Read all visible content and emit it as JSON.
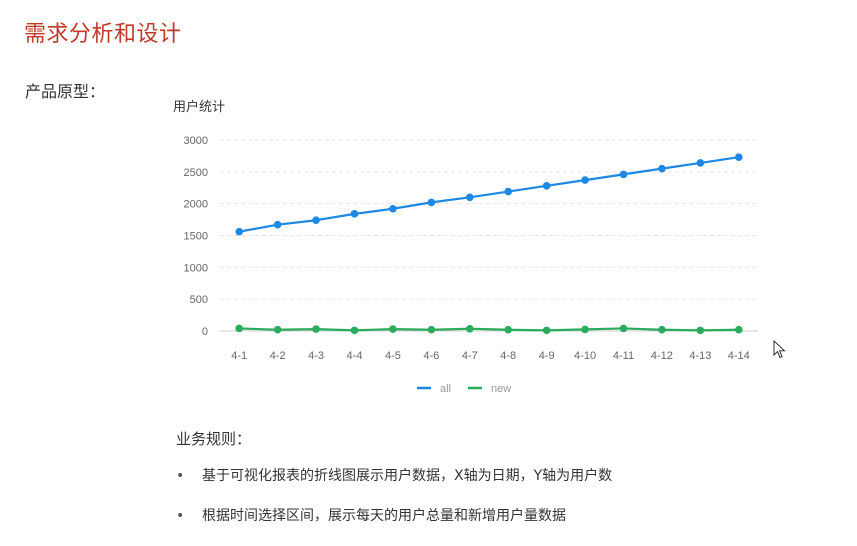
{
  "header": {
    "title": "需求分析和设计"
  },
  "prototype_label": "产品原型：",
  "chart_data": {
    "type": "line",
    "title": "用户统计",
    "categories": [
      "4-1",
      "4-2",
      "4-3",
      "4-4",
      "4-5",
      "4-6",
      "4-7",
      "4-8",
      "4-9",
      "4-10",
      "4-11",
      "4-12",
      "4-13",
      "4-14"
    ],
    "y_ticks": [
      "0",
      "500",
      "1000",
      "1500",
      "2000",
      "2500",
      "3000"
    ],
    "ylim": [
      0,
      3000
    ],
    "grid": true,
    "legend_position": "bottom",
    "series": [
      {
        "name": "all",
        "color": "#1e88e5",
        "values": [
          1560,
          1670,
          1740,
          1840,
          1920,
          2020,
          2100,
          2190,
          2280,
          2370,
          2460,
          2550,
          2640,
          2730
        ]
      },
      {
        "name": "new",
        "color": "#2bab5c",
        "values": [
          40,
          20,
          30,
          10,
          30,
          20,
          35,
          20,
          10,
          25,
          40,
          20,
          10,
          20
        ]
      }
    ]
  },
  "rules": {
    "title": "业务规则：",
    "items": [
      "基于可视化报表的折线图展示用户数据，X轴为日期，Y轴为用户数",
      "根据时间选择区间，展示每天的用户总量和新增用户量数据"
    ],
    "bullet": "•"
  }
}
